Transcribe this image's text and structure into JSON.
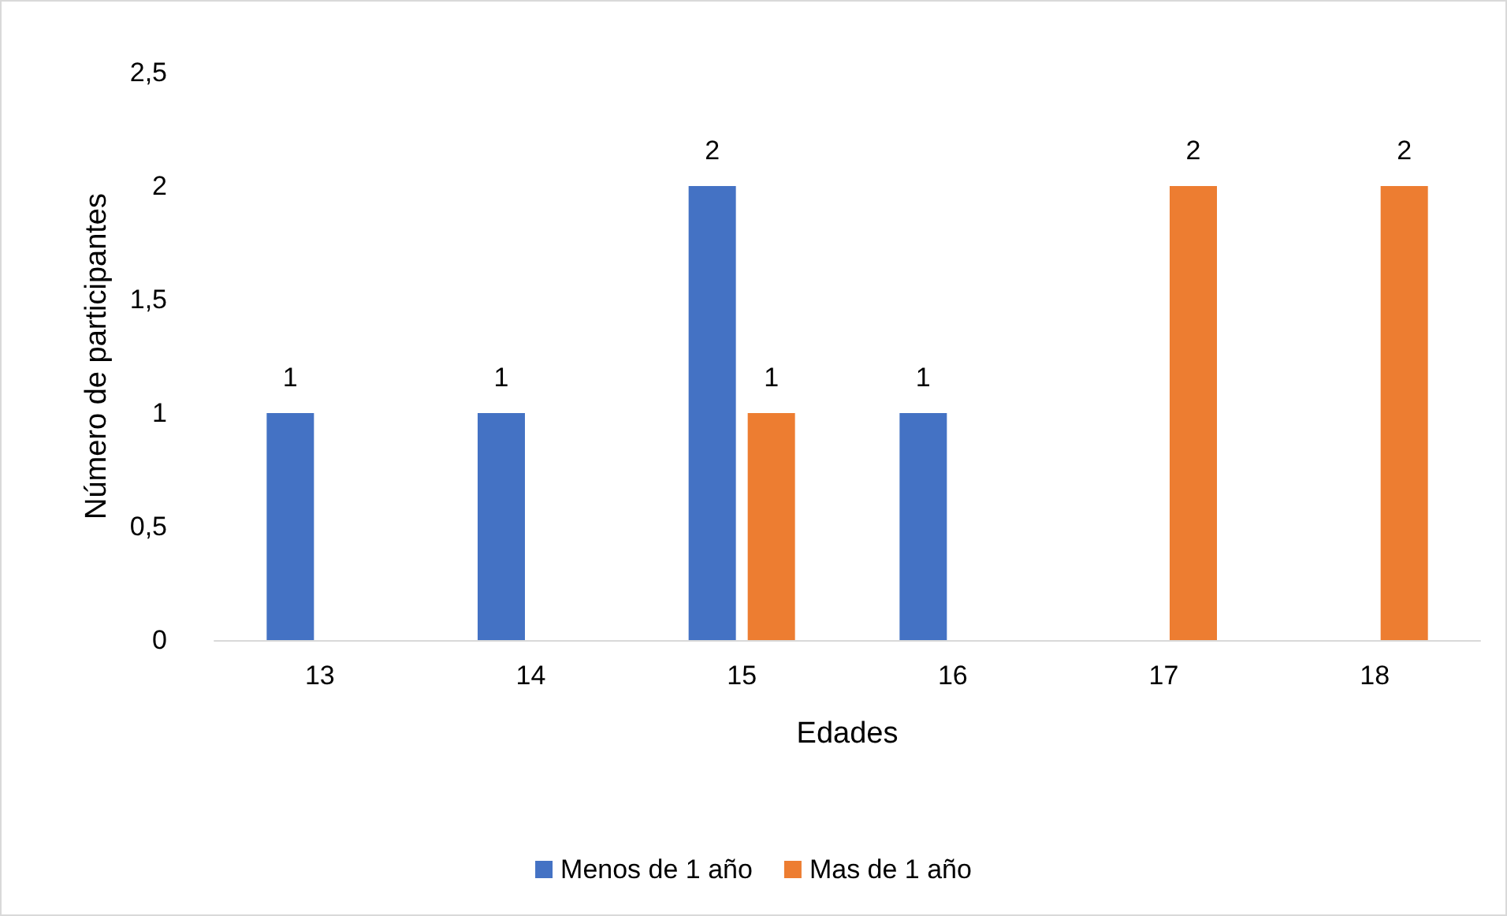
{
  "chart_data": {
    "type": "bar",
    "xlabel": "Edades",
    "ylabel": "Número de participantes",
    "categories": [
      "13",
      "14",
      "15",
      "16",
      "17",
      "18"
    ],
    "series": [
      {
        "name": "Menos de 1 año",
        "color": "#4472c4",
        "values": [
          1,
          1,
          2,
          1,
          null,
          null
        ]
      },
      {
        "name": "Mas de 1 año",
        "color": "#ed7d31",
        "values": [
          null,
          null,
          1,
          null,
          2,
          2
        ]
      }
    ],
    "ylim": [
      0,
      2.5
    ],
    "yticks": [
      0,
      {
        "value": 0.5,
        "label": "0,5"
      },
      1,
      {
        "value": 1.5,
        "label": "1,5"
      },
      2,
      {
        "value": 2.5,
        "label": "2,5"
      }
    ],
    "grid": false,
    "legend": "bottom",
    "data_labels": true
  }
}
